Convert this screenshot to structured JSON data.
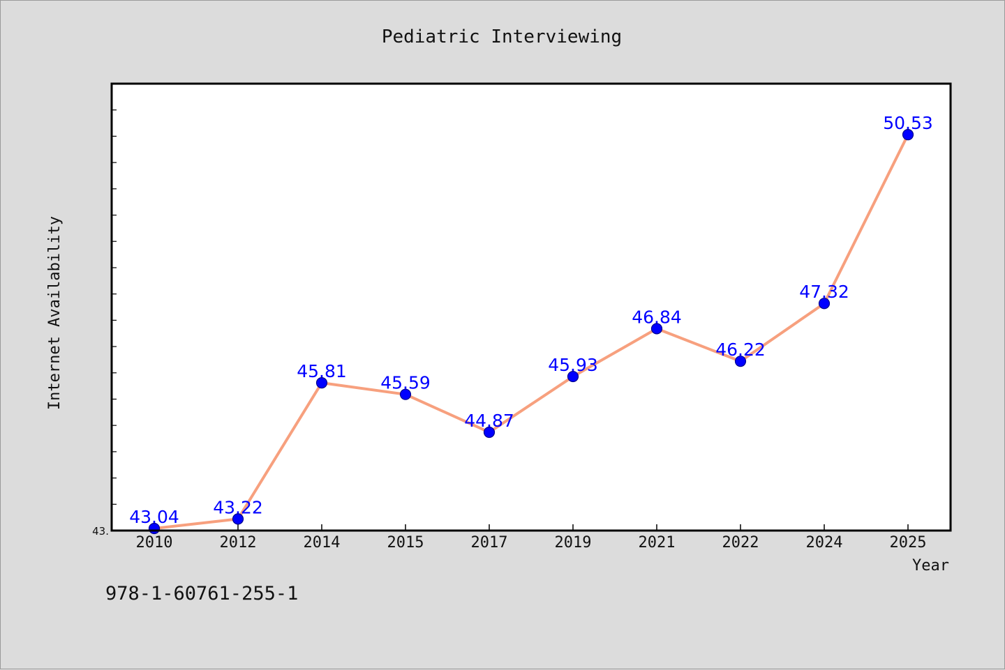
{
  "figure": {
    "footer_text": "978-1-60761-255-1",
    "colors": {
      "background": "#dcdcdc",
      "plot_background": "#ffffff",
      "line": "#f7a07e",
      "marker": "#0000ff",
      "data_label": "#0000ff",
      "axis": "#000000"
    }
  },
  "chart_data": {
    "type": "line",
    "title": "Pediatric Interviewing",
    "xlabel": "Year",
    "ylabel": "Internet Availability",
    "categories": [
      "2010",
      "2012",
      "2014",
      "2015",
      "2017",
      "2019",
      "2021",
      "2022",
      "2024",
      "2025"
    ],
    "series": [
      {
        "values": [
          43.04,
          43.22,
          45.81,
          45.59,
          44.87,
          45.93,
          46.84,
          46.22,
          47.32,
          50.53
        ]
      }
    ],
    "data_labels": [
      "43.04",
      "43.22",
      "45.81",
      "45.59",
      "44.87",
      "45.93",
      "46.84",
      "46.22",
      "47.32",
      "50.53"
    ],
    "ylim": [
      43.0,
      51.5
    ],
    "y_tick_labels": [
      "43."
    ],
    "y_tick_label_values": [
      43.0
    ],
    "y_minor_tick_step": 0.5,
    "grid": false,
    "legend": "none",
    "markers": true
  }
}
